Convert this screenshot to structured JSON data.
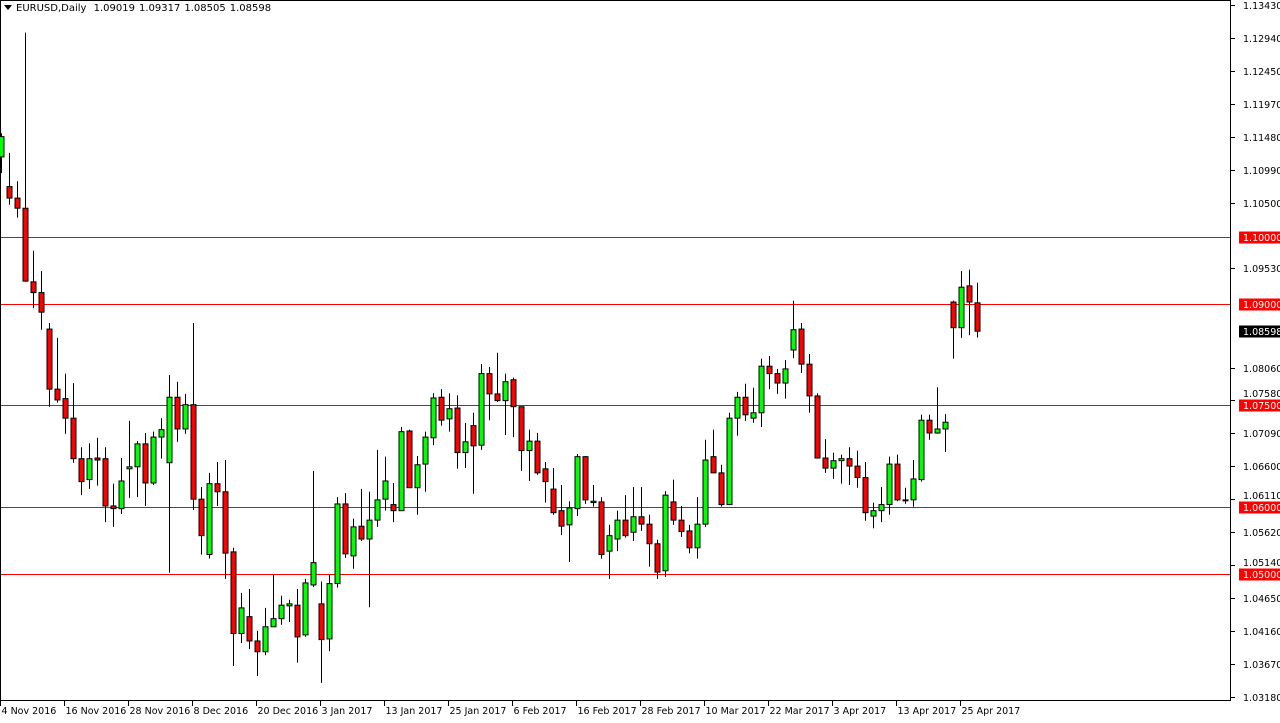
{
  "header": {
    "symbol": "EURUSD,Daily",
    "open": "1.09019",
    "high": "1.09317",
    "low": "1.08505",
    "close": "1.08598"
  },
  "chart_data": {
    "type": "candlestick",
    "title": "EURUSD,Daily",
    "ylim": [
      1.0318,
      1.1343
    ],
    "grid": false,
    "colors": {
      "bull": "#00ff00",
      "bear": "#ff0000",
      "wick": "#000000",
      "level": "#ff0000",
      "current": "#000000"
    },
    "y_ticks": [
      "1.13430",
      "1.12940",
      "1.12450",
      "1.11970",
      "1.11480",
      "1.10990",
      "1.10500",
      "1.09530",
      "1.08060",
      "1.07580",
      "1.07090",
      "1.06600",
      "1.06110",
      "1.05620",
      "1.05140",
      "1.04650",
      "1.04160",
      "1.03670",
      "1.03180"
    ],
    "x_labels": [
      "4 Nov 2016",
      "16 Nov 2016",
      "28 Nov 2016",
      "8 Dec 2016",
      "20 Dec 2016",
      "3 Jan 2017",
      "13 Jan 2017",
      "25 Jan 2017",
      "6 Feb 2017",
      "16 Feb 2017",
      "28 Feb 2017",
      "10 Mar 2017",
      "22 Mar 2017",
      "3 Apr 2017",
      "13 Apr 2017",
      "25 Apr 2017"
    ],
    "x_label_every": 8,
    "levels": [
      "1.10000",
      "1.09000",
      "1.07500",
      "1.06000",
      "1.05000"
    ],
    "current_price": "1.08598",
    "ohlc": [
      [
        1.1118,
        1.1153,
        1.1094,
        1.1148
      ],
      [
        1.1074,
        1.1124,
        1.1047,
        1.1057
      ],
      [
        1.1057,
        1.1082,
        1.1028,
        1.1042
      ],
      [
        1.1042,
        1.1302,
        1.0933,
        1.0934
      ],
      [
        1.0933,
        1.0979,
        1.0894,
        1.0917
      ],
      [
        1.0917,
        1.0949,
        1.0862,
        1.0888
      ],
      [
        1.0863,
        1.0872,
        1.0748,
        1.0774
      ],
      [
        1.0774,
        1.085,
        1.0754,
        1.0758
      ],
      [
        1.076,
        1.0797,
        1.0708,
        1.0731
      ],
      [
        1.0731,
        1.0783,
        1.0665,
        1.0671
      ],
      [
        1.0671,
        1.0688,
        1.0617,
        1.0637
      ],
      [
        1.064,
        1.0694,
        1.0626,
        1.0671
      ],
      [
        1.0672,
        1.0702,
        1.0631,
        1.0669
      ],
      [
        1.0671,
        1.0688,
        1.0577,
        1.0601
      ],
      [
        1.0601,
        1.0634,
        1.057,
        1.0597
      ],
      [
        1.0597,
        1.0672,
        1.0589,
        1.0638
      ],
      [
        1.0656,
        1.0727,
        1.0613,
        1.0659
      ],
      [
        1.0659,
        1.0697,
        1.0614,
        1.0693
      ],
      [
        1.0693,
        1.0709,
        1.0601,
        1.0635
      ],
      [
        1.0635,
        1.0711,
        1.0632,
        1.0703
      ],
      [
        1.0703,
        1.0731,
        1.0671,
        1.0714
      ],
      [
        1.0665,
        1.0795,
        1.0502,
        1.0762
      ],
      [
        1.0762,
        1.0785,
        1.0696,
        1.0715
      ],
      [
        1.0715,
        1.0767,
        1.0708,
        1.0751
      ],
      [
        1.0751,
        1.0872,
        1.0595,
        1.0611
      ],
      [
        1.0611,
        1.0629,
        1.0529,
        1.0557
      ],
      [
        1.0529,
        1.065,
        1.0523,
        1.0634
      ],
      [
        1.0634,
        1.0666,
        1.0601,
        1.0622
      ],
      [
        1.0622,
        1.0669,
        1.0493,
        1.0531
      ],
      [
        1.0533,
        1.0539,
        1.0364,
        1.0412
      ],
      [
        1.0412,
        1.0472,
        1.0398,
        1.045
      ],
      [
        1.0437,
        1.0478,
        1.0389,
        1.0401
      ],
      [
        1.0401,
        1.0416,
        1.0349,
        1.0385
      ],
      [
        1.0385,
        1.045,
        1.038,
        1.0422
      ],
      [
        1.0422,
        1.0499,
        1.0422,
        1.0434
      ],
      [
        1.0434,
        1.0468,
        1.0425,
        1.0454
      ],
      [
        1.0453,
        1.0462,
        1.0429,
        1.0456
      ],
      [
        1.0454,
        1.0478,
        1.0369,
        1.0407
      ],
      [
        1.041,
        1.0493,
        1.0407,
        1.0487
      ],
      [
        1.0484,
        1.0653,
        1.0481,
        1.0517
      ],
      [
        1.0456,
        1.0489,
        1.0339,
        1.0403
      ],
      [
        1.0404,
        1.0499,
        1.0386,
        1.0486
      ],
      [
        1.0486,
        1.0614,
        1.048,
        1.0604
      ],
      [
        1.0604,
        1.062,
        1.0524,
        1.053
      ],
      [
        1.0527,
        1.0582,
        1.0508,
        1.057
      ],
      [
        1.0571,
        1.0626,
        1.0549,
        1.0552
      ],
      [
        1.0552,
        1.0622,
        1.0451,
        1.058
      ],
      [
        1.058,
        1.0684,
        1.057,
        1.061
      ],
      [
        1.0611,
        1.0674,
        1.0594,
        1.0638
      ],
      [
        1.0603,
        1.0635,
        1.0577,
        1.0594
      ],
      [
        1.0594,
        1.0718,
        1.0594,
        1.0711
      ],
      [
        1.0712,
        1.0714,
        1.0628,
        1.0628
      ],
      [
        1.0628,
        1.0675,
        1.0588,
        1.0662
      ],
      [
        1.0663,
        1.0711,
        1.0622,
        1.0703
      ],
      [
        1.0702,
        1.0768,
        1.0691,
        1.0761
      ],
      [
        1.0762,
        1.0774,
        1.072,
        1.0728
      ],
      [
        1.073,
        1.0768,
        1.0711,
        1.0745
      ],
      [
        1.0746,
        1.0765,
        1.0656,
        1.068
      ],
      [
        1.068,
        1.0724,
        1.0657,
        1.0696
      ],
      [
        1.072,
        1.0739,
        1.0619,
        1.069
      ],
      [
        1.0691,
        1.0811,
        1.0684,
        1.0797
      ],
      [
        1.0797,
        1.0807,
        1.0728,
        1.0767
      ],
      [
        1.0767,
        1.0828,
        1.0755,
        1.0757
      ],
      [
        1.0757,
        1.0797,
        1.0706,
        1.0785
      ],
      [
        1.0788,
        1.0791,
        1.0703,
        1.0748
      ],
      [
        1.0748,
        1.0748,
        1.0653,
        1.0683
      ],
      [
        1.0683,
        1.0714,
        1.0638,
        1.0697
      ],
      [
        1.0697,
        1.0709,
        1.0647,
        1.065
      ],
      [
        1.0656,
        1.0666,
        1.0606,
        1.0637
      ],
      [
        1.0626,
        1.0657,
        1.0588,
        1.0591
      ],
      [
        1.0594,
        1.0632,
        1.0558,
        1.0571
      ],
      [
        1.0573,
        1.0608,
        1.0518,
        1.0598
      ],
      [
        1.0597,
        1.0678,
        1.0586,
        1.0674
      ],
      [
        1.0674,
        1.0675,
        1.0604,
        1.061
      ],
      [
        1.0606,
        1.0632,
        1.06,
        1.0608
      ],
      [
        1.0607,
        1.0614,
        1.0523,
        1.0529
      ],
      [
        1.0534,
        1.0573,
        1.0493,
        1.0557
      ],
      [
        1.0552,
        1.0594,
        1.0534,
        1.058
      ],
      [
        1.058,
        1.0617,
        1.0554,
        1.0557
      ],
      [
        1.0562,
        1.0629,
        1.0549,
        1.0585
      ],
      [
        1.0585,
        1.0629,
        1.0564,
        1.0574
      ],
      [
        1.0574,
        1.0588,
        1.0511,
        1.0545
      ],
      [
        1.0545,
        1.0551,
        1.0493,
        1.0503
      ],
      [
        1.0505,
        1.0623,
        1.0496,
        1.0617
      ],
      [
        1.0607,
        1.064,
        1.0573,
        1.058
      ],
      [
        1.058,
        1.0601,
        1.0555,
        1.0563
      ],
      [
        1.0564,
        1.0573,
        1.0531,
        1.0539
      ],
      [
        1.0539,
        1.0614,
        1.0523,
        1.0574
      ],
      [
        1.0574,
        1.0699,
        1.057,
        1.0669
      ],
      [
        1.0674,
        1.0714,
        1.065,
        1.065
      ],
      [
        1.065,
        1.0662,
        1.06,
        1.0603
      ],
      [
        1.0603,
        1.0739,
        1.0603,
        1.0731
      ],
      [
        1.0731,
        1.077,
        1.0705,
        1.0762
      ],
      [
        1.0762,
        1.0782,
        1.0727,
        1.0736
      ],
      [
        1.0731,
        1.0776,
        1.0724,
        1.0739
      ],
      [
        1.0739,
        1.0819,
        1.0718,
        1.0808
      ],
      [
        1.0808,
        1.0823,
        1.0774,
        1.0797
      ],
      [
        1.0797,
        1.0804,
        1.0767,
        1.0783
      ],
      [
        1.0783,
        1.0817,
        1.076,
        1.0804
      ],
      [
        1.0832,
        1.0905,
        1.082,
        1.0862
      ],
      [
        1.0863,
        1.0872,
        1.0798,
        1.0811
      ],
      [
        1.0811,
        1.0826,
        1.0739,
        1.0764
      ],
      [
        1.0764,
        1.0768,
        1.0671,
        1.0672
      ],
      [
        1.0672,
        1.07,
        1.065,
        1.0657
      ],
      [
        1.0657,
        1.068,
        1.0641,
        1.0668
      ],
      [
        1.0668,
        1.0677,
        1.0634,
        1.0671
      ],
      [
        1.0671,
        1.0688,
        1.0632,
        1.066
      ],
      [
        1.066,
        1.0683,
        1.0628,
        1.0643
      ],
      [
        1.0643,
        1.0666,
        1.0579,
        1.0591
      ],
      [
        1.0586,
        1.0606,
        1.0568,
        1.0594
      ],
      [
        1.0594,
        1.0629,
        1.0577,
        1.0603
      ],
      [
        1.0603,
        1.0674,
        1.0588,
        1.0663
      ],
      [
        1.0663,
        1.0677,
        1.0608,
        1.061
      ],
      [
        1.0609,
        1.0628,
        1.0604,
        1.061
      ],
      [
        1.061,
        1.0669,
        1.06,
        1.0641
      ],
      [
        1.064,
        1.0736,
        1.0637,
        1.0728
      ],
      [
        1.0728,
        1.0736,
        1.0699,
        1.0709
      ],
      [
        1.0709,
        1.0777,
        1.0708,
        1.0715
      ],
      [
        1.0715,
        1.0737,
        1.0681,
        1.0725
      ],
      [
        1.0903,
        1.0905,
        1.0819,
        1.0865
      ],
      [
        1.0865,
        1.0949,
        1.085,
        1.0925
      ],
      [
        1.0927,
        1.0951,
        1.0854,
        1.0903
      ],
      [
        1.09019,
        1.09317,
        1.08505,
        1.08598
      ]
    ]
  }
}
